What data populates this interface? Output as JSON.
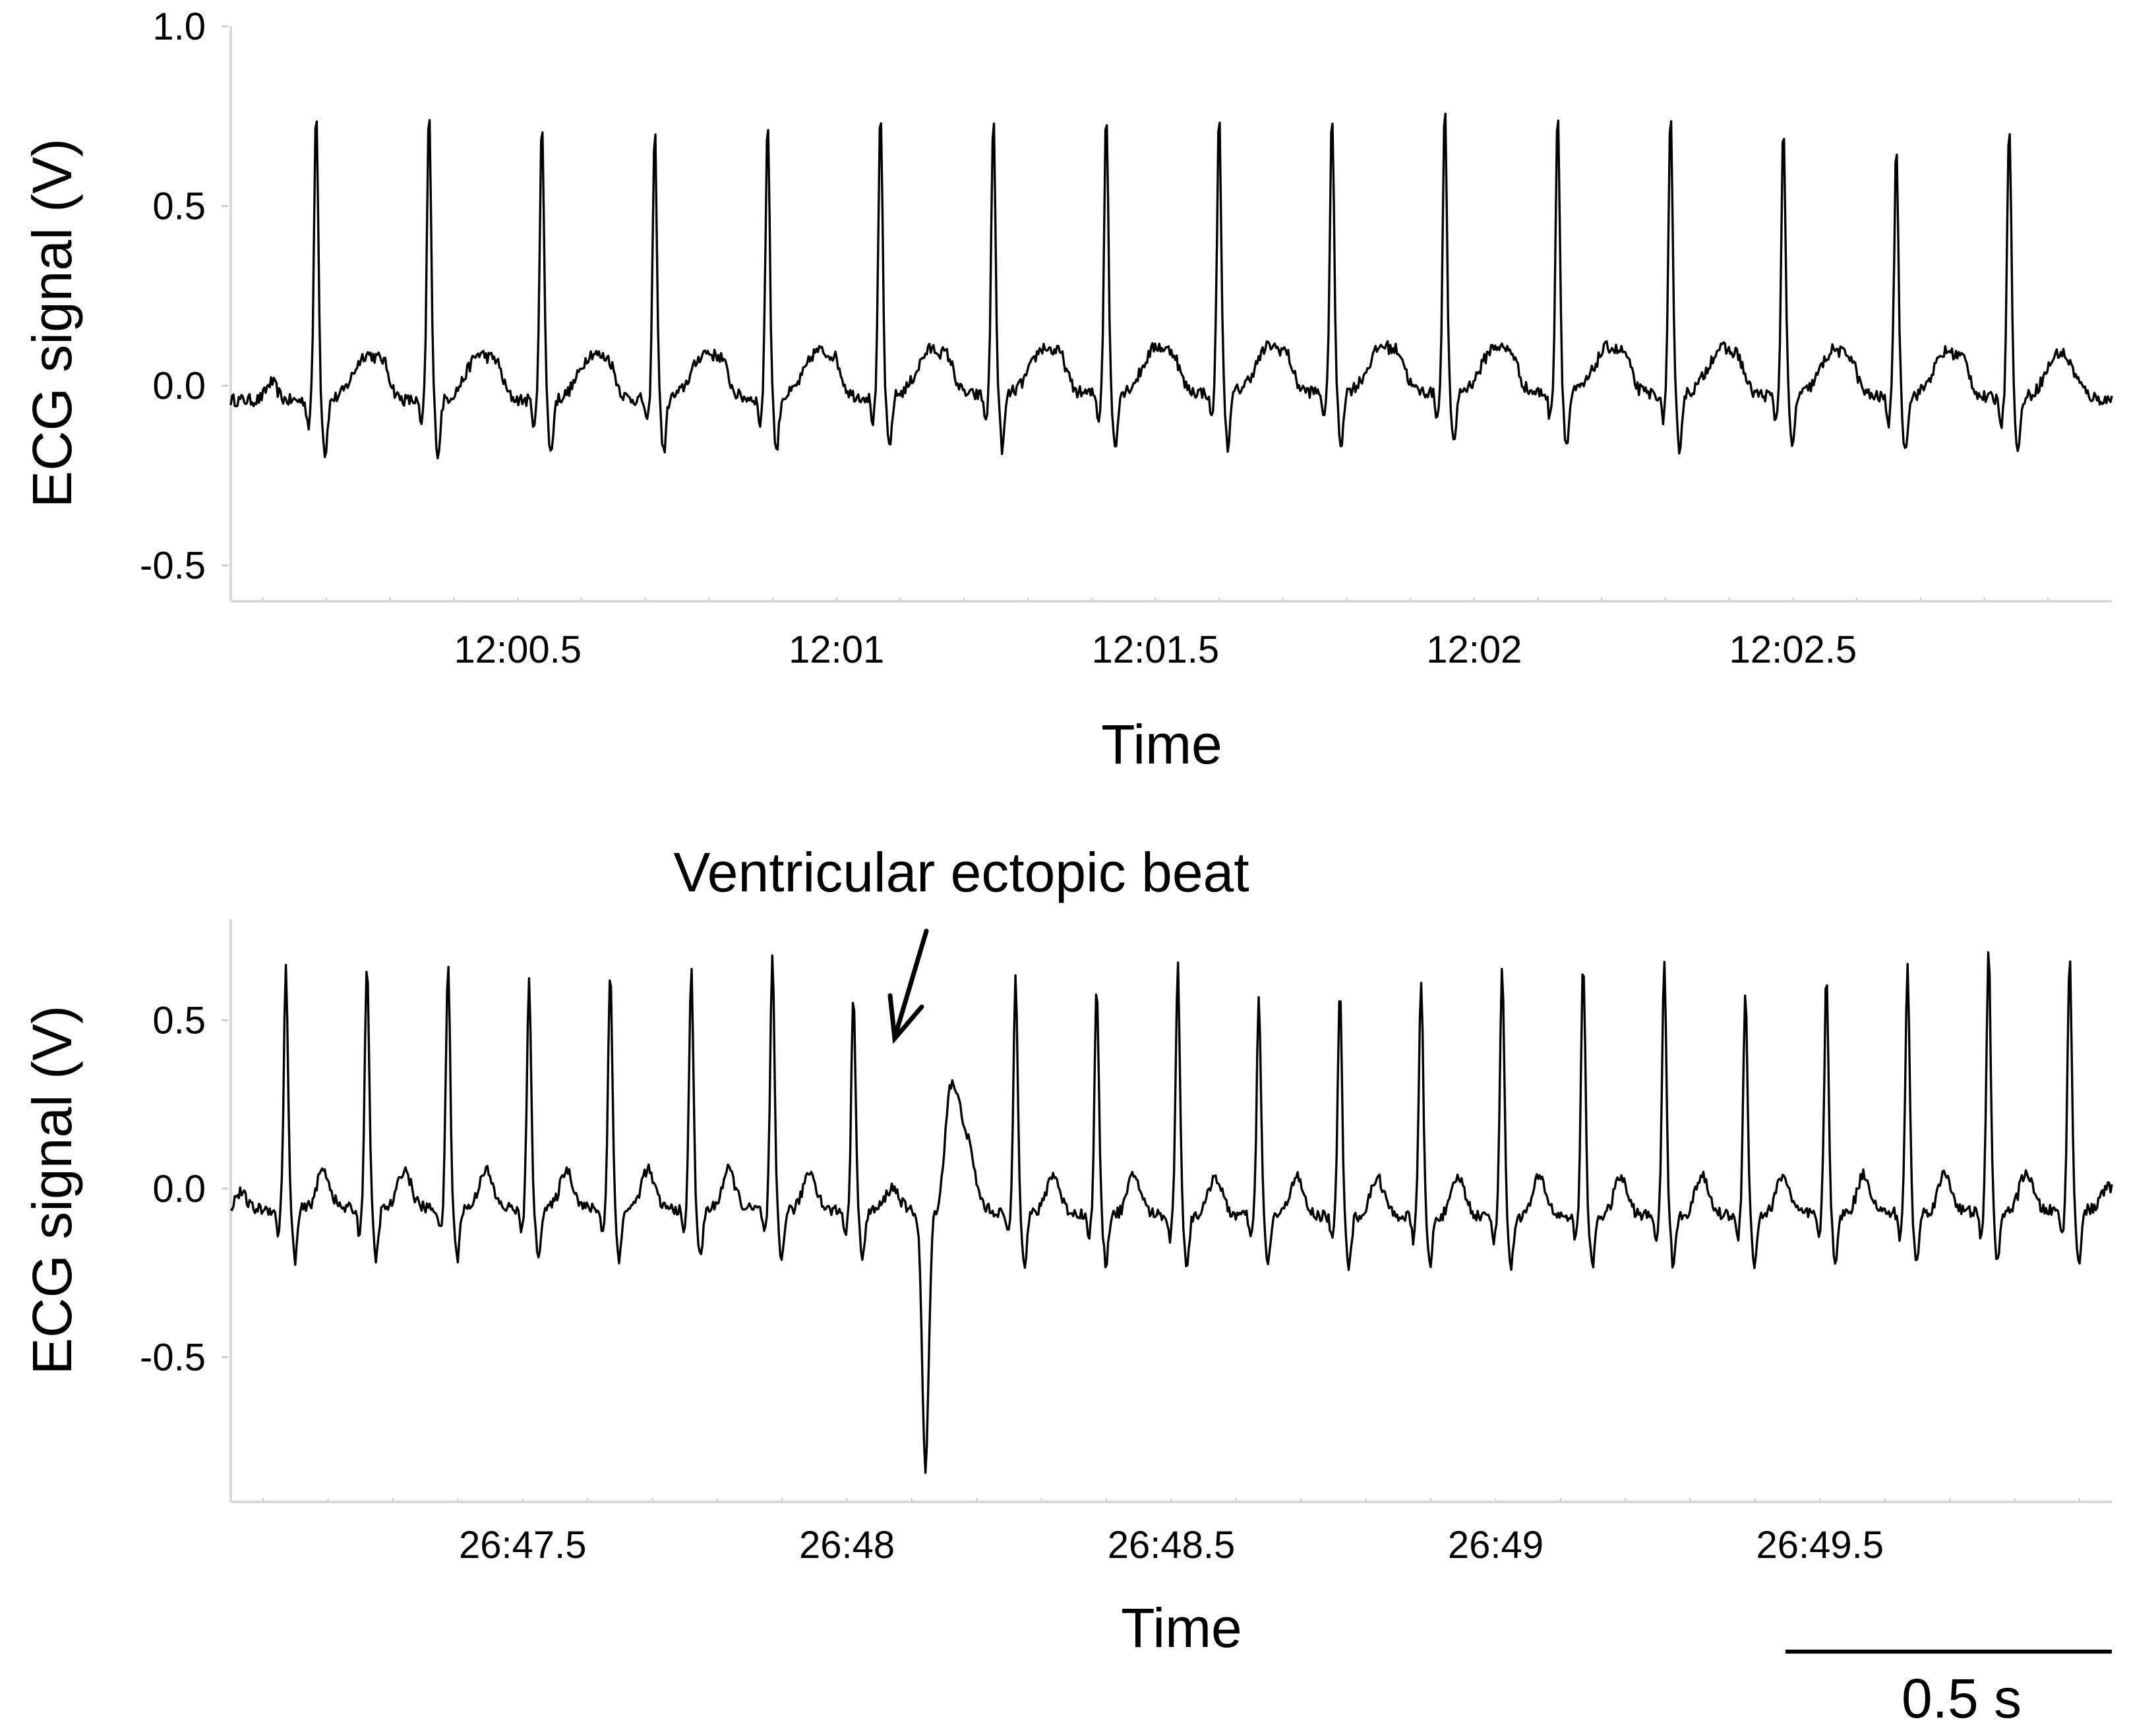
{
  "chart_data": [
    {
      "type": "line",
      "ylabel": "ECG signal (V)",
      "xlabel": "Time",
      "ylim": [
        -0.6,
        1.0
      ],
      "yticks": [
        "1.0",
        "0.5",
        "0.0",
        "-0.5"
      ],
      "xticks": [
        "12:00.5",
        "12:01",
        "12:01.5",
        "12:02",
        "12:02.5"
      ],
      "xtick_seconds": [
        720.5,
        721.0,
        721.5,
        722.0,
        722.5
      ],
      "xlim_seconds": [
        720.05,
        723.0
      ],
      "baseline_v": -0.03,
      "beats": [
        {
          "t": 720.184,
          "peak": 0.79
        },
        {
          "t": 720.361,
          "peak": 0.78
        },
        {
          "t": 720.538,
          "peak": 0.76
        },
        {
          "t": 720.715,
          "peak": 0.72
        },
        {
          "t": 720.892,
          "peak": 0.75
        },
        {
          "t": 721.069,
          "peak": 0.76
        },
        {
          "t": 721.246,
          "peak": 0.75
        },
        {
          "t": 721.423,
          "peak": 0.76
        },
        {
          "t": 721.6,
          "peak": 0.74
        },
        {
          "t": 721.777,
          "peak": 0.75
        },
        {
          "t": 721.954,
          "peak": 0.76
        },
        {
          "t": 722.131,
          "peak": 0.76
        },
        {
          "t": 722.308,
          "peak": 0.74
        },
        {
          "t": 722.485,
          "peak": 0.72
        },
        {
          "t": 722.662,
          "peak": 0.67
        },
        {
          "t": 722.839,
          "peak": 0.75
        }
      ]
    },
    {
      "type": "line",
      "ylabel": "ECG signal (V)",
      "xlabel": "Time",
      "ylim": [
        -0.93,
        0.8
      ],
      "yticks": [
        "0.5",
        "0.0",
        "-0.5"
      ],
      "xticks": [
        "26:47.5",
        "26:48",
        "26:48.5",
        "26:49",
        "26:49.5"
      ],
      "xtick_seconds": [
        1607.5,
        1608.0,
        1608.5,
        1609.0,
        1609.5
      ],
      "xlim_seconds": [
        1607.05,
        1609.95
      ],
      "baseline_v": -0.07,
      "beats": [
        {
          "t": 1607.135,
          "peak": 0.64
        },
        {
          "t": 1607.26,
          "peak": 0.67
        },
        {
          "t": 1607.385,
          "peak": 0.66
        },
        {
          "t": 1607.51,
          "peak": 0.6
        },
        {
          "t": 1607.635,
          "peak": 0.63
        },
        {
          "t": 1607.76,
          "peak": 0.64
        },
        {
          "t": 1607.885,
          "peak": 0.67
        },
        {
          "t": 1608.01,
          "peak": 0.58
        },
        {
          "t": 1608.26,
          "peak": 0.63
        },
        {
          "t": 1608.385,
          "peak": 0.6
        },
        {
          "t": 1608.51,
          "peak": 0.67
        },
        {
          "t": 1608.635,
          "peak": 0.57
        },
        {
          "t": 1608.76,
          "peak": 0.6
        },
        {
          "t": 1608.885,
          "peak": 0.64
        },
        {
          "t": 1609.01,
          "peak": 0.68
        },
        {
          "t": 1609.135,
          "peak": 0.69
        },
        {
          "t": 1609.26,
          "peak": 0.69
        },
        {
          "t": 1609.385,
          "peak": 0.6
        },
        {
          "t": 1609.51,
          "peak": 0.63
        },
        {
          "t": 1609.635,
          "peak": 0.66
        },
        {
          "t": 1609.76,
          "peak": 0.7
        },
        {
          "t": 1609.885,
          "peak": 0.69
        }
      ],
      "ectopic": {
        "t": 1608.125,
        "nadir": -0.84,
        "peak": 0.31
      },
      "annotation": "Ventricular ectopic beat",
      "scalebar_label": "0.5 s",
      "scalebar_seconds": 0.5
    }
  ]
}
